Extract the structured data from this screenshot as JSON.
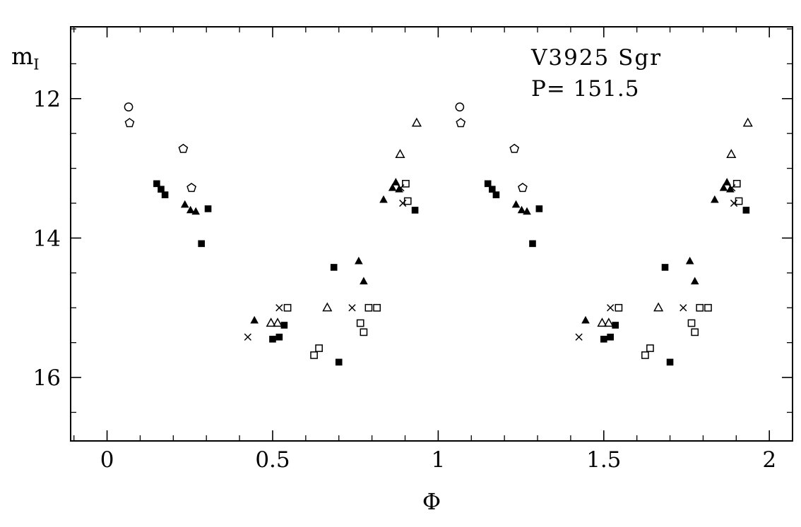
{
  "chart_data": {
    "type": "scatter",
    "title": "V3925 Sgr",
    "annotation": "P= 151.5",
    "xlabel": "Φ",
    "ylabel": "m_I",
    "ylabel_main": "m",
    "ylabel_sub": "I",
    "x_range": [
      -0.11,
      2.07
    ],
    "y_range": [
      10.97,
      16.91
    ],
    "y_inverted": true,
    "x_ticks": [
      0,
      0.5,
      1,
      1.5,
      2
    ],
    "x_tick_labels": [
      "0",
      "0.5",
      "1",
      "1.5",
      "2"
    ],
    "x_minor_step": 0.1,
    "y_ticks": [
      12,
      14,
      16
    ],
    "y_tick_labels": [
      "12",
      "14",
      "16"
    ],
    "y_minor_step": 0.5,
    "grid": false,
    "marker_color": "#000000",
    "background_color": "#ffffff",
    "phase_duplicate_offset": 1,
    "series": [
      {
        "name": "open-circle",
        "symbol": "open-circle",
        "points": [
          [
            0.065,
            12.12
          ]
        ]
      },
      {
        "name": "open-pentagon",
        "symbol": "open-pentagon",
        "points": [
          [
            0.068,
            12.35
          ],
          [
            0.23,
            12.72
          ],
          [
            0.255,
            13.28
          ]
        ]
      },
      {
        "name": "filled-square",
        "symbol": "filled-square",
        "points": [
          [
            0.15,
            13.22
          ],
          [
            0.163,
            13.3
          ],
          [
            0.175,
            13.38
          ],
          [
            0.305,
            13.58
          ],
          [
            0.285,
            14.08
          ],
          [
            0.5,
            15.45
          ],
          [
            0.52,
            15.42
          ],
          [
            0.535,
            15.25
          ],
          [
            0.685,
            14.42
          ],
          [
            0.7,
            15.78
          ],
          [
            0.93,
            13.6
          ]
        ]
      },
      {
        "name": "filled-triangle",
        "symbol": "filled-triangle",
        "points": [
          [
            0.235,
            13.52
          ],
          [
            0.252,
            13.6
          ],
          [
            0.268,
            13.62
          ],
          [
            0.445,
            15.18
          ],
          [
            0.76,
            14.33
          ],
          [
            0.775,
            14.62
          ],
          [
            0.835,
            13.45
          ],
          [
            0.862,
            13.28
          ],
          [
            0.872,
            13.2
          ],
          [
            0.882,
            13.3
          ]
        ]
      },
      {
        "name": "open-triangle",
        "symbol": "open-triangle",
        "points": [
          [
            0.495,
            15.22
          ],
          [
            0.515,
            15.22
          ],
          [
            0.665,
            15.0
          ],
          [
            0.885,
            12.8
          ],
          [
            0.935,
            12.35
          ]
        ]
      },
      {
        "name": "cross",
        "symbol": "cross",
        "points": [
          [
            0.425,
            15.42
          ],
          [
            0.52,
            15.0
          ],
          [
            0.74,
            15.0
          ],
          [
            0.887,
            13.28
          ],
          [
            0.893,
            13.5
          ]
        ]
      },
      {
        "name": "open-square",
        "symbol": "open-square",
        "points": [
          [
            0.545,
            15.0
          ],
          [
            0.625,
            15.68
          ],
          [
            0.64,
            15.58
          ],
          [
            0.765,
            15.22
          ],
          [
            0.775,
            15.35
          ],
          [
            0.79,
            15.0
          ],
          [
            0.815,
            15.0
          ],
          [
            0.902,
            13.22
          ],
          [
            0.908,
            13.47
          ]
        ]
      }
    ]
  }
}
